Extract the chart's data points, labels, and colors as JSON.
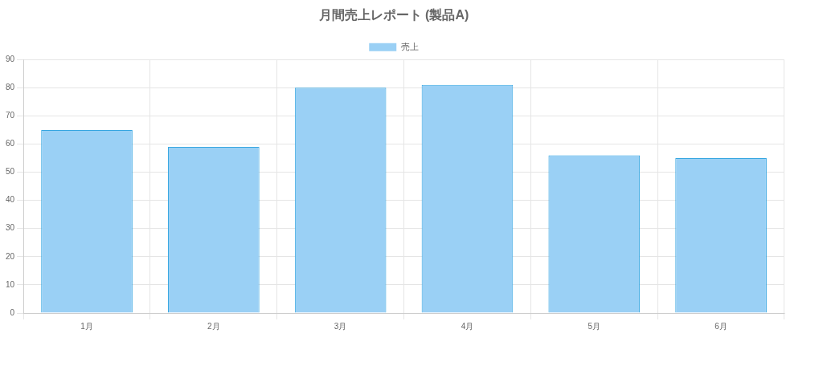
{
  "chart_data": {
    "type": "bar",
    "title": "月間売上レポート (製品A)",
    "categories": [
      "1月",
      "2月",
      "3月",
      "4月",
      "5月",
      "6月"
    ],
    "series": [
      {
        "name": "売上",
        "color": "#9ad0f5",
        "values": [
          65,
          59,
          80,
          81,
          56,
          55
        ]
      }
    ],
    "ylim": [
      0,
      90
    ],
    "yticks": [
      0,
      10,
      20,
      30,
      40,
      50,
      60,
      70,
      80,
      90
    ],
    "grid": true,
    "legend": "top"
  }
}
